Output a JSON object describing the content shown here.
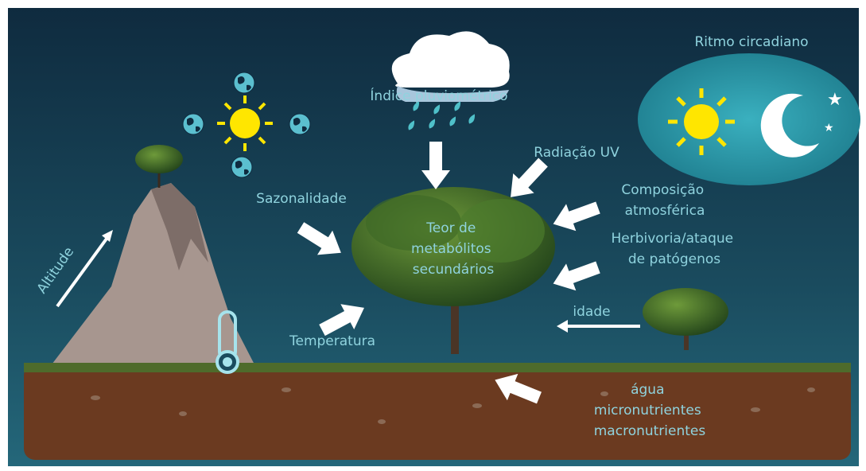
{
  "labels": {
    "circadian": "Ritmo circadiano",
    "rainfall": "Índice pluviométrico",
    "uv": "Radiação UV",
    "atmosphere": [
      "Composição",
      "atmosférica"
    ],
    "seasonality": "Sazonalidade",
    "herbivory": [
      "Herbivoria/ataque",
      "de patógenos"
    ],
    "altitude": "Altitude",
    "center": [
      "Teor de",
      "metabólitos",
      "secundários"
    ],
    "age": "idade",
    "temperature": "Temperatura",
    "soil": [
      "água",
      "micronutrientes",
      "macronutrientes"
    ]
  }
}
